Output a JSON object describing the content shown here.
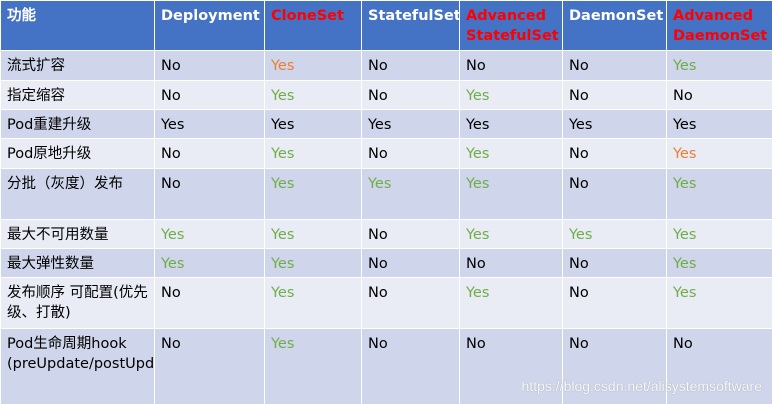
{
  "table": {
    "headers": [
      {
        "text": "功能",
        "color": "white"
      },
      {
        "text": "Deployment",
        "color": "white"
      },
      {
        "text": "CloneSet",
        "color": "red"
      },
      {
        "text": "StatefulSet",
        "color": "white"
      },
      {
        "text": "Advanced StatefulSet",
        "color": "red"
      },
      {
        "text": "DaemonSet",
        "color": "white"
      },
      {
        "text": "Advanced DaemonSet",
        "color": "red"
      }
    ],
    "rows": [
      {
        "feature": "流式扩容",
        "cells": [
          {
            "text": "No",
            "style": "no"
          },
          {
            "text": "Yes",
            "style": "yes-orange"
          },
          {
            "text": "No",
            "style": "no"
          },
          {
            "text": "No",
            "style": "no"
          },
          {
            "text": "No",
            "style": "no"
          },
          {
            "text": "Yes",
            "style": "yes-green"
          }
        ]
      },
      {
        "feature": "指定缩容",
        "cells": [
          {
            "text": "No",
            "style": "no"
          },
          {
            "text": "Yes",
            "style": "yes-green"
          },
          {
            "text": "No",
            "style": "no"
          },
          {
            "text": "Yes",
            "style": "yes-green"
          },
          {
            "text": "No",
            "style": "no"
          },
          {
            "text": "No",
            "style": "no"
          }
        ]
      },
      {
        "feature": "Pod重建升级",
        "cells": [
          {
            "text": "Yes",
            "style": "yes-black"
          },
          {
            "text": "Yes",
            "style": "yes-black"
          },
          {
            "text": "Yes",
            "style": "yes-black"
          },
          {
            "text": "Yes",
            "style": "yes-black"
          },
          {
            "text": "Yes",
            "style": "yes-black"
          },
          {
            "text": "Yes",
            "style": "yes-black"
          }
        ]
      },
      {
        "feature": "Pod原地升级",
        "cells": [
          {
            "text": "No",
            "style": "no"
          },
          {
            "text": "Yes",
            "style": "yes-green"
          },
          {
            "text": "No",
            "style": "no"
          },
          {
            "text": "Yes",
            "style": "yes-green"
          },
          {
            "text": "No",
            "style": "no"
          },
          {
            "text": "Yes",
            "style": "yes-orange"
          }
        ]
      },
      {
        "feature": "分批（灰度）发布",
        "cells": [
          {
            "text": "No",
            "style": "no"
          },
          {
            "text": "Yes",
            "style": "yes-green"
          },
          {
            "text": "Yes",
            "style": "yes-green"
          },
          {
            "text": "Yes",
            "style": "yes-green"
          },
          {
            "text": "No",
            "style": "no"
          },
          {
            "text": "Yes",
            "style": "yes-green"
          }
        ]
      },
      {
        "feature": "最大不可用数量",
        "cells": [
          {
            "text": "Yes",
            "style": "yes-green"
          },
          {
            "text": "Yes",
            "style": "yes-green"
          },
          {
            "text": "No",
            "style": "no"
          },
          {
            "text": "Yes",
            "style": "yes-green"
          },
          {
            "text": "Yes",
            "style": "yes-green"
          },
          {
            "text": "Yes",
            "style": "yes-green"
          }
        ]
      },
      {
        "feature": "最大弹性数量",
        "cells": [
          {
            "text": "Yes",
            "style": "yes-green"
          },
          {
            "text": "Yes",
            "style": "yes-green"
          },
          {
            "text": "No",
            "style": "no"
          },
          {
            "text": "No",
            "style": "no"
          },
          {
            "text": "No",
            "style": "no"
          },
          {
            "text": "Yes",
            "style": "yes-green"
          }
        ]
      },
      {
        "feature": "发布顺序 可配置(优先级、打散)",
        "cells": [
          {
            "text": "No",
            "style": "no"
          },
          {
            "text": "Yes",
            "style": "yes-green"
          },
          {
            "text": "No",
            "style": "no"
          },
          {
            "text": "Yes",
            "style": "yes-green"
          },
          {
            "text": "No",
            "style": "no"
          },
          {
            "text": "Yes",
            "style": "yes-green"
          }
        ]
      },
      {
        "feature": "Pod生命周期hook (preUpdate/postUpdate/preDelete)",
        "cells": [
          {
            "text": "No",
            "style": "no"
          },
          {
            "text": "Yes",
            "style": "yes-green"
          },
          {
            "text": "No",
            "style": "no"
          },
          {
            "text": "No",
            "style": "no"
          },
          {
            "text": "No",
            "style": "no"
          },
          {
            "text": "No",
            "style": "no"
          }
        ]
      }
    ]
  },
  "watermark": "https://blog.csdn.net/alisystemsoftware",
  "colors": {
    "header_bg": "#4472c4",
    "row_odd": "#cfd5ea",
    "row_even": "#e9ebf5",
    "red": "#ff0000",
    "green": "#70ad47",
    "orange": "#ed7d31"
  }
}
